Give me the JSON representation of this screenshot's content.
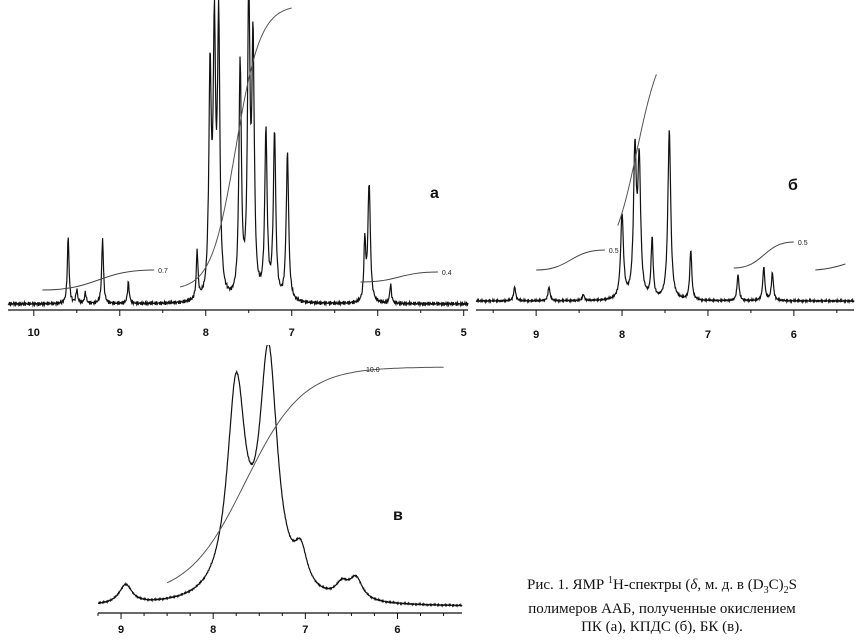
{
  "figure": {
    "caption": {
      "line1_pre": "Рис. 1. ЯМР ",
      "sup1": "1",
      "line1_mid": "Н-спектры (",
      "delta": "δ",
      "line1_mid2": ", м. д. в (D",
      "sub1": "3",
      "line1_end": "C)",
      "sub2": "2",
      "line1_tail": "S",
      "line2": "полимеров ААБ, полученные окислением",
      "line3": "ПК (а), КПДС (б), БК (в)."
    }
  },
  "chart_data": [
    {
      "type": "line",
      "panel_label": "а",
      "x_ticks": [
        "10",
        "9",
        "8",
        "7",
        "6",
        "5"
      ],
      "xlim": [
        10.3,
        4.95
      ],
      "x_axis_reversed": true,
      "integral_labels": [
        "0.7",
        "0.4"
      ],
      "peaks": [
        {
          "x": 9.6,
          "y": 0.25
        },
        {
          "x": 9.5,
          "y": 0.05
        },
        {
          "x": 9.4,
          "y": 0.04
        },
        {
          "x": 9.2,
          "y": 0.24
        },
        {
          "x": 8.9,
          "y": 0.08
        },
        {
          "x": 8.1,
          "y": 0.18
        },
        {
          "x": 7.95,
          "y": 0.82
        },
        {
          "x": 7.9,
          "y": 0.94
        },
        {
          "x": 7.85,
          "y": 1.0
        },
        {
          "x": 7.6,
          "y": 0.86
        },
        {
          "x": 7.5,
          "y": 1.1
        },
        {
          "x": 7.45,
          "y": 0.92
        },
        {
          "x": 7.3,
          "y": 0.62
        },
        {
          "x": 7.2,
          "y": 0.62
        },
        {
          "x": 7.05,
          "y": 0.55
        },
        {
          "x": 6.15,
          "y": 0.22
        },
        {
          "x": 6.1,
          "y": 0.44
        },
        {
          "x": 5.85,
          "y": 0.07
        }
      ]
    },
    {
      "type": "line",
      "panel_label": "б",
      "x_ticks": [
        "9",
        "8",
        "7",
        "6"
      ],
      "xlim": [
        9.7,
        5.3
      ],
      "x_axis_reversed": true,
      "integral_labels": [
        "0.5",
        "0.5"
      ],
      "peaks": [
        {
          "x": 9.25,
          "y": 0.07
        },
        {
          "x": 8.85,
          "y": 0.07
        },
        {
          "x": 8.45,
          "y": 0.03
        },
        {
          "x": 8.0,
          "y": 0.42
        },
        {
          "x": 7.85,
          "y": 0.72
        },
        {
          "x": 7.8,
          "y": 0.66
        },
        {
          "x": 7.65,
          "y": 0.3
        },
        {
          "x": 7.45,
          "y": 0.85
        },
        {
          "x": 7.2,
          "y": 0.25
        },
        {
          "x": 6.65,
          "y": 0.13
        },
        {
          "x": 6.35,
          "y": 0.17
        },
        {
          "x": 6.25,
          "y": 0.14
        }
      ]
    },
    {
      "type": "line",
      "panel_label": "в",
      "x_ticks": [
        "9",
        "8",
        "7",
        "6"
      ],
      "xlim": [
        9.25,
        5.3
      ],
      "x_axis_reversed": true,
      "integral_labels": [
        "10.0"
      ],
      "peaks": [
        {
          "x": 8.95,
          "y": 0.08
        },
        {
          "x": 7.75,
          "y": 0.87
        },
        {
          "x": 7.4,
          "y": 1.0
        },
        {
          "x": 7.05,
          "y": 0.15
        },
        {
          "x": 6.6,
          "y": 0.06
        },
        {
          "x": 6.45,
          "y": 0.09
        }
      ]
    }
  ],
  "colors": {
    "ink": "#111111",
    "integral": "#555555"
  }
}
